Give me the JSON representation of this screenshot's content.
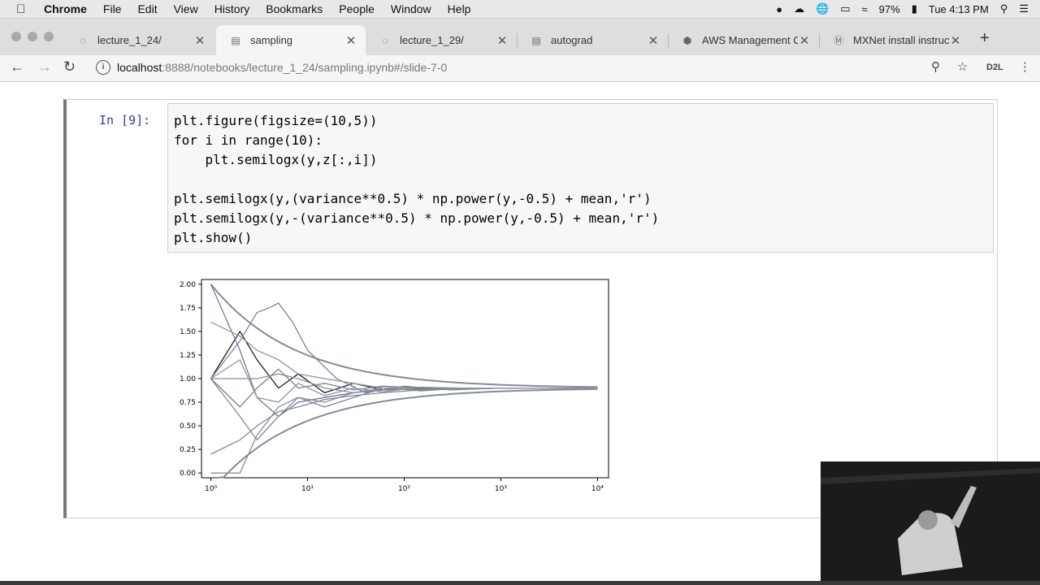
{
  "menubar": {
    "app": "Chrome",
    "items": [
      "File",
      "Edit",
      "View",
      "History",
      "Bookmarks",
      "People",
      "Window",
      "Help"
    ],
    "battery": "97%",
    "clock": "Tue 4:13 PM"
  },
  "tabs": [
    {
      "title": "lecture_1_24/",
      "icon": "loading-icon"
    },
    {
      "title": "sampling",
      "icon": "page-icon"
    },
    {
      "title": "lecture_1_29/",
      "icon": "loading-icon"
    },
    {
      "title": "autograd",
      "icon": "page-icon"
    },
    {
      "title": "AWS Management Co",
      "icon": "aws-icon"
    },
    {
      "title": "MXNet install instructi",
      "icon": "mxnet-icon"
    }
  ],
  "toolbar": {
    "url_host": "localhost",
    "url_path": ":8888/notebooks/lecture_1_24/sampling.ipynb#/slide-7-0",
    "extension_label": "D2L"
  },
  "cell": {
    "prompt": "In [9]:",
    "code_lines": [
      "plt.figure(figsize=(10,5))",
      "for i in range(10):",
      "    plt.semilogx(y,z[:,i])",
      "",
      "plt.semilogx(y,(variance**0.5) * np.power(y,-0.5) + mean,'r')",
      "plt.semilogx(y,-(variance**0.5) * np.power(y,-0.5) + mean,'r')",
      "plt.show()"
    ]
  },
  "chart_data": {
    "type": "line",
    "title": "",
    "xlabel": "",
    "ylabel": "",
    "xscale": "log",
    "xlim": [
      0.8,
      13000
    ],
    "ylim": [
      -0.05,
      2.05
    ],
    "x_ticks": [
      1,
      10,
      100,
      1000,
      10000
    ],
    "x_tick_labels": [
      "10⁰",
      "10¹",
      "10²",
      "10³",
      "10⁴"
    ],
    "y_ticks": [
      0.0,
      0.25,
      0.5,
      0.75,
      1.0,
      1.25,
      1.5,
      1.75,
      2.0
    ],
    "y_tick_labels": [
      "0.00",
      "0.25",
      "0.50",
      "0.75",
      "1.00",
      "1.25",
      "1.50",
      "1.75",
      "2.00"
    ],
    "grid": false,
    "series": [
      {
        "x": [
          1,
          2,
          3,
          5,
          8,
          15,
          30,
          60,
          150,
          400,
          1000,
          3000,
          10000
        ],
        "y": [
          1.0,
          1.5,
          1.2,
          0.9,
          1.05,
          0.85,
          0.95,
          0.88,
          0.9,
          0.89,
          0.9,
          0.9,
          0.9
        ],
        "color": "#1f1f1f"
      },
      {
        "x": [
          1,
          2,
          3,
          5,
          8,
          15,
          30,
          60,
          150,
          400,
          1000,
          3000,
          10000
        ],
        "y": [
          2.0,
          1.3,
          0.8,
          0.6,
          0.75,
          0.8,
          0.85,
          0.88,
          0.89,
          0.9,
          0.9,
          0.9,
          0.9
        ],
        "color": "#6f7d8c"
      },
      {
        "x": [
          1,
          2,
          3,
          5,
          8,
          15,
          30,
          60,
          150,
          400,
          1000,
          3000,
          10000
        ],
        "y": [
          0.0,
          0.0,
          0.4,
          0.7,
          0.8,
          0.75,
          0.85,
          0.9,
          0.88,
          0.9,
          0.9,
          0.9,
          0.9
        ],
        "color": "#8a8fa0"
      },
      {
        "x": [
          1,
          2,
          3,
          4,
          5,
          7,
          10,
          20,
          40,
          100,
          300,
          1000,
          10000
        ],
        "y": [
          1.0,
          1.4,
          1.7,
          1.75,
          1.8,
          1.6,
          1.3,
          1.0,
          0.85,
          0.92,
          0.88,
          0.9,
          0.9
        ],
        "color": "#7a8797"
      },
      {
        "x": [
          1,
          2,
          3,
          5,
          8,
          15,
          30,
          60,
          150,
          400,
          1000,
          3000,
          10000
        ],
        "y": [
          1.0,
          1.0,
          1.0,
          1.05,
          1.0,
          0.9,
          0.85,
          0.9,
          0.87,
          0.9,
          0.9,
          0.9,
          0.9
        ],
        "color": "#8c8c9a"
      },
      {
        "x": [
          1,
          2,
          3,
          5,
          8,
          15,
          30,
          60,
          150,
          400,
          1000,
          3000,
          10000
        ],
        "y": [
          1.0,
          0.6,
          0.35,
          0.6,
          0.8,
          0.7,
          0.8,
          0.9,
          0.88,
          0.9,
          0.9,
          0.9,
          0.9
        ],
        "color": "#7d8a99"
      },
      {
        "x": [
          1,
          2,
          3,
          5,
          8,
          15,
          30,
          60,
          150,
          400,
          1000,
          3000,
          10000
        ],
        "y": [
          1.6,
          1.45,
          1.3,
          1.2,
          1.05,
          1.0,
          0.95,
          0.9,
          0.91,
          0.89,
          0.9,
          0.9,
          0.9
        ],
        "color": "#8f95a3"
      },
      {
        "x": [
          1,
          2,
          3,
          5,
          8,
          15,
          30,
          60,
          150,
          400,
          1000,
          3000,
          10000
        ],
        "y": [
          0.2,
          0.35,
          0.5,
          0.65,
          0.7,
          0.78,
          0.82,
          0.85,
          0.88,
          0.89,
          0.9,
          0.9,
          0.9
        ],
        "color": "#80889a"
      },
      {
        "x": [
          1,
          2,
          3,
          5,
          8,
          15,
          30,
          60,
          150,
          400,
          1000,
          3000,
          10000
        ],
        "y": [
          1.0,
          0.7,
          0.9,
          1.1,
          0.9,
          0.95,
          0.88,
          0.92,
          0.9,
          0.9,
          0.9,
          0.9,
          0.9
        ],
        "color": "#7a7f8c"
      },
      {
        "x": [
          1,
          2,
          3,
          5,
          8,
          15,
          30,
          60,
          150,
          400,
          1000,
          3000,
          10000
        ],
        "y": [
          1.0,
          1.2,
          0.8,
          0.75,
          0.95,
          0.82,
          0.9,
          0.86,
          0.91,
          0.9,
          0.9,
          0.9,
          0.9
        ],
        "color": "#9097a4"
      }
    ],
    "envelope": {
      "mean": 0.9,
      "stddev": 1.1,
      "color": "#858b98"
    }
  }
}
